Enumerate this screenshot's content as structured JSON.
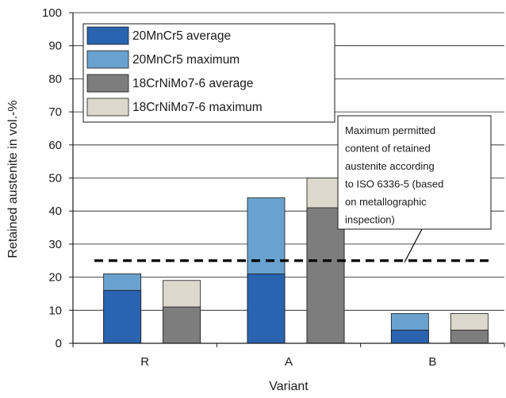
{
  "chart_data": {
    "type": "bar",
    "subtype": "grouped-overlay",
    "title": "",
    "xlabel": "Variant",
    "ylabel": "Retained austenite in vol.-%",
    "categories": [
      "R",
      "A",
      "B"
    ],
    "ylim": [
      0,
      100
    ],
    "yticks": [
      0,
      10,
      20,
      30,
      40,
      50,
      60,
      70,
      80,
      90,
      100
    ],
    "grid": "horizontal",
    "legend_position": "top-left",
    "series": [
      {
        "name": "20MnCr5 average",
        "group": "20MnCr5",
        "kind": "average",
        "values": [
          16,
          21,
          4
        ],
        "color": "#2a64b0"
      },
      {
        "name": "20MnCr5 maximum",
        "group": "20MnCr5",
        "kind": "maximum",
        "values": [
          21,
          44,
          9
        ],
        "color": "#6aa2cf"
      },
      {
        "name": "18CrNiMo7-6 average",
        "group": "18CrNiMo7-6",
        "kind": "average",
        "values": [
          11,
          41,
          4
        ],
        "color": "#7d7d7d"
      },
      {
        "name": "18CrNiMo7-6 maximum",
        "group": "18CrNiMo7-6",
        "kind": "maximum",
        "values": [
          19,
          50,
          9
        ],
        "color": "#dcd8cc"
      }
    ],
    "reference_line": {
      "value": 25,
      "style": "dashed",
      "annotation": [
        "Maximum permitted",
        "content of retained",
        "austenite according",
        "to ISO 6336-5 (based",
        "on metallographic",
        "inspection)"
      ]
    }
  }
}
